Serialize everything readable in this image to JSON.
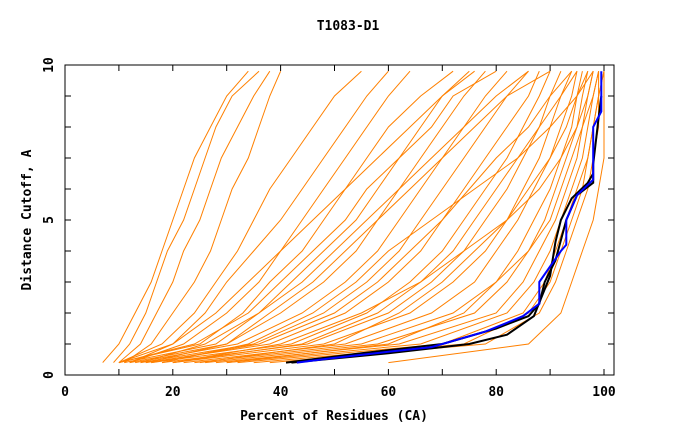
{
  "chart_data": {
    "type": "line",
    "title": "T1083-D1",
    "xlabel": "Percent of Residues (CA)",
    "ylabel": "Distance Cutoff, A",
    "xlim": [
      0,
      101
    ],
    "ylim": [
      0,
      10
    ],
    "x_ticks": [
      "0",
      "20",
      "40",
      "60",
      "80",
      "100"
    ],
    "y_ticks": [
      "0",
      "5",
      "10"
    ],
    "grid": false,
    "colors": {
      "models": "#ff8000",
      "highlight_black": "#000000",
      "highlight_blue": "#0000ff"
    },
    "model_y_levels": [
      0.4,
      1,
      2,
      3,
      4,
      5,
      6,
      7,
      8,
      9,
      9.8
    ],
    "model_curves_x": [
      [
        7,
        10,
        13,
        16,
        18,
        20,
        22,
        24,
        27,
        30,
        34
      ],
      [
        9,
        12,
        15,
        17,
        19,
        22,
        24,
        26,
        28,
        31,
        36
      ],
      [
        10,
        14,
        17,
        20,
        22,
        25,
        27,
        29,
        32,
        35,
        38
      ],
      [
        11,
        16,
        20,
        24,
        27,
        29,
        31,
        34,
        36,
        38,
        40
      ],
      [
        10,
        18,
        24,
        28,
        32,
        35,
        38,
        42,
        46,
        50,
        55
      ],
      [
        10,
        20,
        26,
        30,
        35,
        40,
        44,
        48,
        52,
        56,
        60
      ],
      [
        12,
        22,
        30,
        36,
        40,
        44,
        48,
        52,
        56,
        60,
        64
      ],
      [
        10,
        25,
        33,
        38,
        44,
        48,
        52,
        56,
        60,
        66,
        72
      ],
      [
        11,
        28,
        36,
        42,
        48,
        54,
        58,
        62,
        66,
        70,
        75
      ],
      [
        12,
        30,
        40,
        48,
        54,
        58,
        62,
        66,
        70,
        74,
        78
      ],
      [
        13,
        32,
        44,
        52,
        58,
        62,
        66,
        70,
        74,
        78,
        82
      ],
      [
        14,
        35,
        48,
        56,
        62,
        66,
        70,
        74,
        78,
        82,
        86
      ],
      [
        15,
        38,
        52,
        60,
        66,
        70,
        74,
        78,
        82,
        86,
        88
      ],
      [
        16,
        42,
        56,
        64,
        70,
        74,
        78,
        82,
        85,
        88,
        90
      ],
      [
        18,
        45,
        60,
        68,
        74,
        78,
        82,
        85,
        88,
        90,
        92
      ],
      [
        20,
        48,
        64,
        72,
        78,
        82,
        85,
        88,
        90,
        92,
        94
      ],
      [
        22,
        52,
        68,
        76,
        80,
        84,
        87,
        90,
        92,
        94,
        95
      ],
      [
        24,
        55,
        72,
        80,
        84,
        87,
        90,
        92,
        94,
        95,
        96
      ],
      [
        26,
        58,
        76,
        82,
        86,
        89,
        91,
        93,
        95,
        96,
        97
      ],
      [
        28,
        62,
        80,
        85,
        88,
        91,
        93,
        95,
        96,
        97,
        98
      ],
      [
        30,
        66,
        82,
        87,
        90,
        92,
        94,
        96,
        97,
        98,
        99
      ],
      [
        32,
        70,
        85,
        89,
        91,
        93,
        95,
        97,
        98,
        99,
        99
      ],
      [
        35,
        74,
        86,
        90,
        92,
        94,
        96,
        97,
        98,
        99,
        100
      ],
      [
        38,
        78,
        88,
        91,
        93,
        95,
        97,
        98,
        99,
        99,
        100
      ],
      [
        60,
        86,
        92,
        94,
        96,
        98,
        99,
        100,
        100,
        100,
        100
      ],
      [
        15,
        30,
        38,
        46,
        52,
        58,
        64,
        70,
        76,
        82,
        90
      ],
      [
        18,
        34,
        46,
        54,
        60,
        68,
        76,
        84,
        90,
        95,
        98
      ],
      [
        20,
        40,
        55,
        66,
        74,
        82,
        88,
        92,
        95,
        97,
        98
      ],
      [
        12,
        20,
        28,
        34,
        40,
        46,
        52,
        58,
        64,
        70,
        76
      ],
      [
        14,
        26,
        36,
        44,
        50,
        56,
        62,
        68,
        74,
        80,
        86
      ],
      [
        25,
        50,
        62,
        70,
        76,
        82,
        86,
        90,
        93,
        95,
        97
      ],
      [
        10,
        24,
        34,
        40,
        46,
        52,
        56,
        62,
        68,
        72,
        80
      ],
      [
        30,
        60,
        74,
        80,
        86,
        90,
        92,
        94,
        96,
        98,
        99
      ],
      [
        20,
        44,
        58,
        66,
        72,
        76,
        80,
        84,
        88,
        92,
        95
      ],
      [
        16,
        36,
        50,
        58,
        64,
        70,
        75,
        80,
        86,
        90,
        94
      ]
    ],
    "highlight_black": [
      [
        [
          41,
          0.4
        ],
        [
          55,
          0.7
        ],
        [
          70,
          1.0
        ],
        [
          80,
          1.5
        ],
        [
          86,
          1.9
        ],
        [
          88,
          2.3
        ],
        [
          89,
          3
        ],
        [
          91,
          3.7
        ],
        [
          93,
          5
        ],
        [
          95,
          5.8
        ],
        [
          98,
          6.2
        ],
        [
          98,
          6.8
        ],
        [
          99,
          8.3
        ],
        [
          99.5,
          9.0
        ]
      ],
      [
        [
          42,
          0.4
        ],
        [
          60,
          0.7
        ],
        [
          75,
          1.0
        ],
        [
          82,
          1.3
        ],
        [
          87,
          1.9
        ],
        [
          90,
          3.2
        ],
        [
          91,
          4.3
        ],
        [
          92,
          5
        ],
        [
          94,
          5.7
        ],
        [
          97,
          6.2
        ],
        [
          98,
          6.5
        ]
      ]
    ],
    "highlight_blue": [
      [
        43,
        0.4
      ],
      [
        50,
        0.55
      ],
      [
        60,
        0.75
      ],
      [
        68,
        0.9
      ],
      [
        78,
        1.4
      ],
      [
        85,
        1.9
      ],
      [
        88,
        2.3
      ],
      [
        88,
        3
      ],
      [
        90,
        3.5
      ],
      [
        92,
        4
      ],
      [
        93,
        4.2
      ],
      [
        93,
        5
      ],
      [
        95,
        5.8
      ],
      [
        98,
        6.3
      ],
      [
        98,
        8
      ],
      [
        99.5,
        8.5
      ],
      [
        99.5,
        9.8
      ]
    ]
  }
}
